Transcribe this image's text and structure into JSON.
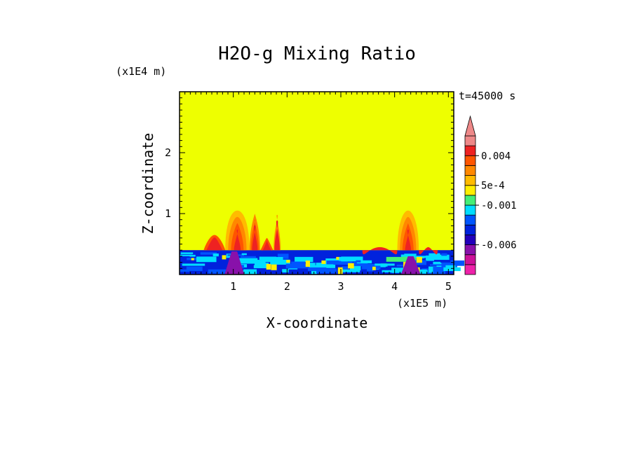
{
  "chart_data": {
    "type": "heatmap",
    "title": "H2O-g Mixing Ratio",
    "xlabel": "X-coordinate",
    "ylabel": "Z-coordinate",
    "x_unit": "(x1E5 m)",
    "y_unit": "(x1E4 m)",
    "time_label": "t=45000 s",
    "xlim": [
      0,
      5.1
    ],
    "ylim": [
      0,
      3
    ],
    "x_ticks": [
      1,
      2,
      3,
      4,
      5
    ],
    "x_tick_labels": [
      "1",
      "2",
      "3",
      "4",
      "5"
    ],
    "y_ticks": [
      1,
      2
    ],
    "y_tick_labels": [
      "1",
      "2"
    ],
    "background_value_color": "#EEFF00",
    "colorbar": {
      "colors": [
        "#EE22AA",
        "#CC1199",
        "#8811AA",
        "#2200BB",
        "#0022DD",
        "#0055FF",
        "#00DDFF",
        "#44EE77",
        "#FFEE00",
        "#FFBB00",
        "#FF8800",
        "#FF5500",
        "#EE2222",
        "#EE8888"
      ],
      "labels": [
        "-0.006",
        "-0.001",
        "5e-4",
        "0.004"
      ],
      "label_band_index": [
        2,
        6,
        8,
        11
      ],
      "extend_max": true
    },
    "regions": [
      {
        "name": "boundary-layer",
        "x": [
          0,
          5.1
        ],
        "z": [
          0,
          0.4
        ],
        "value": "negative"
      },
      {
        "name": "plume-left",
        "x": [
          0.4,
          1.9
        ],
        "z": [
          0.4,
          1.05
        ],
        "value": "positive"
      },
      {
        "name": "plume-right",
        "x": [
          4.0,
          4.5
        ],
        "z": [
          0.4,
          1.05
        ],
        "value": "positive"
      }
    ]
  }
}
